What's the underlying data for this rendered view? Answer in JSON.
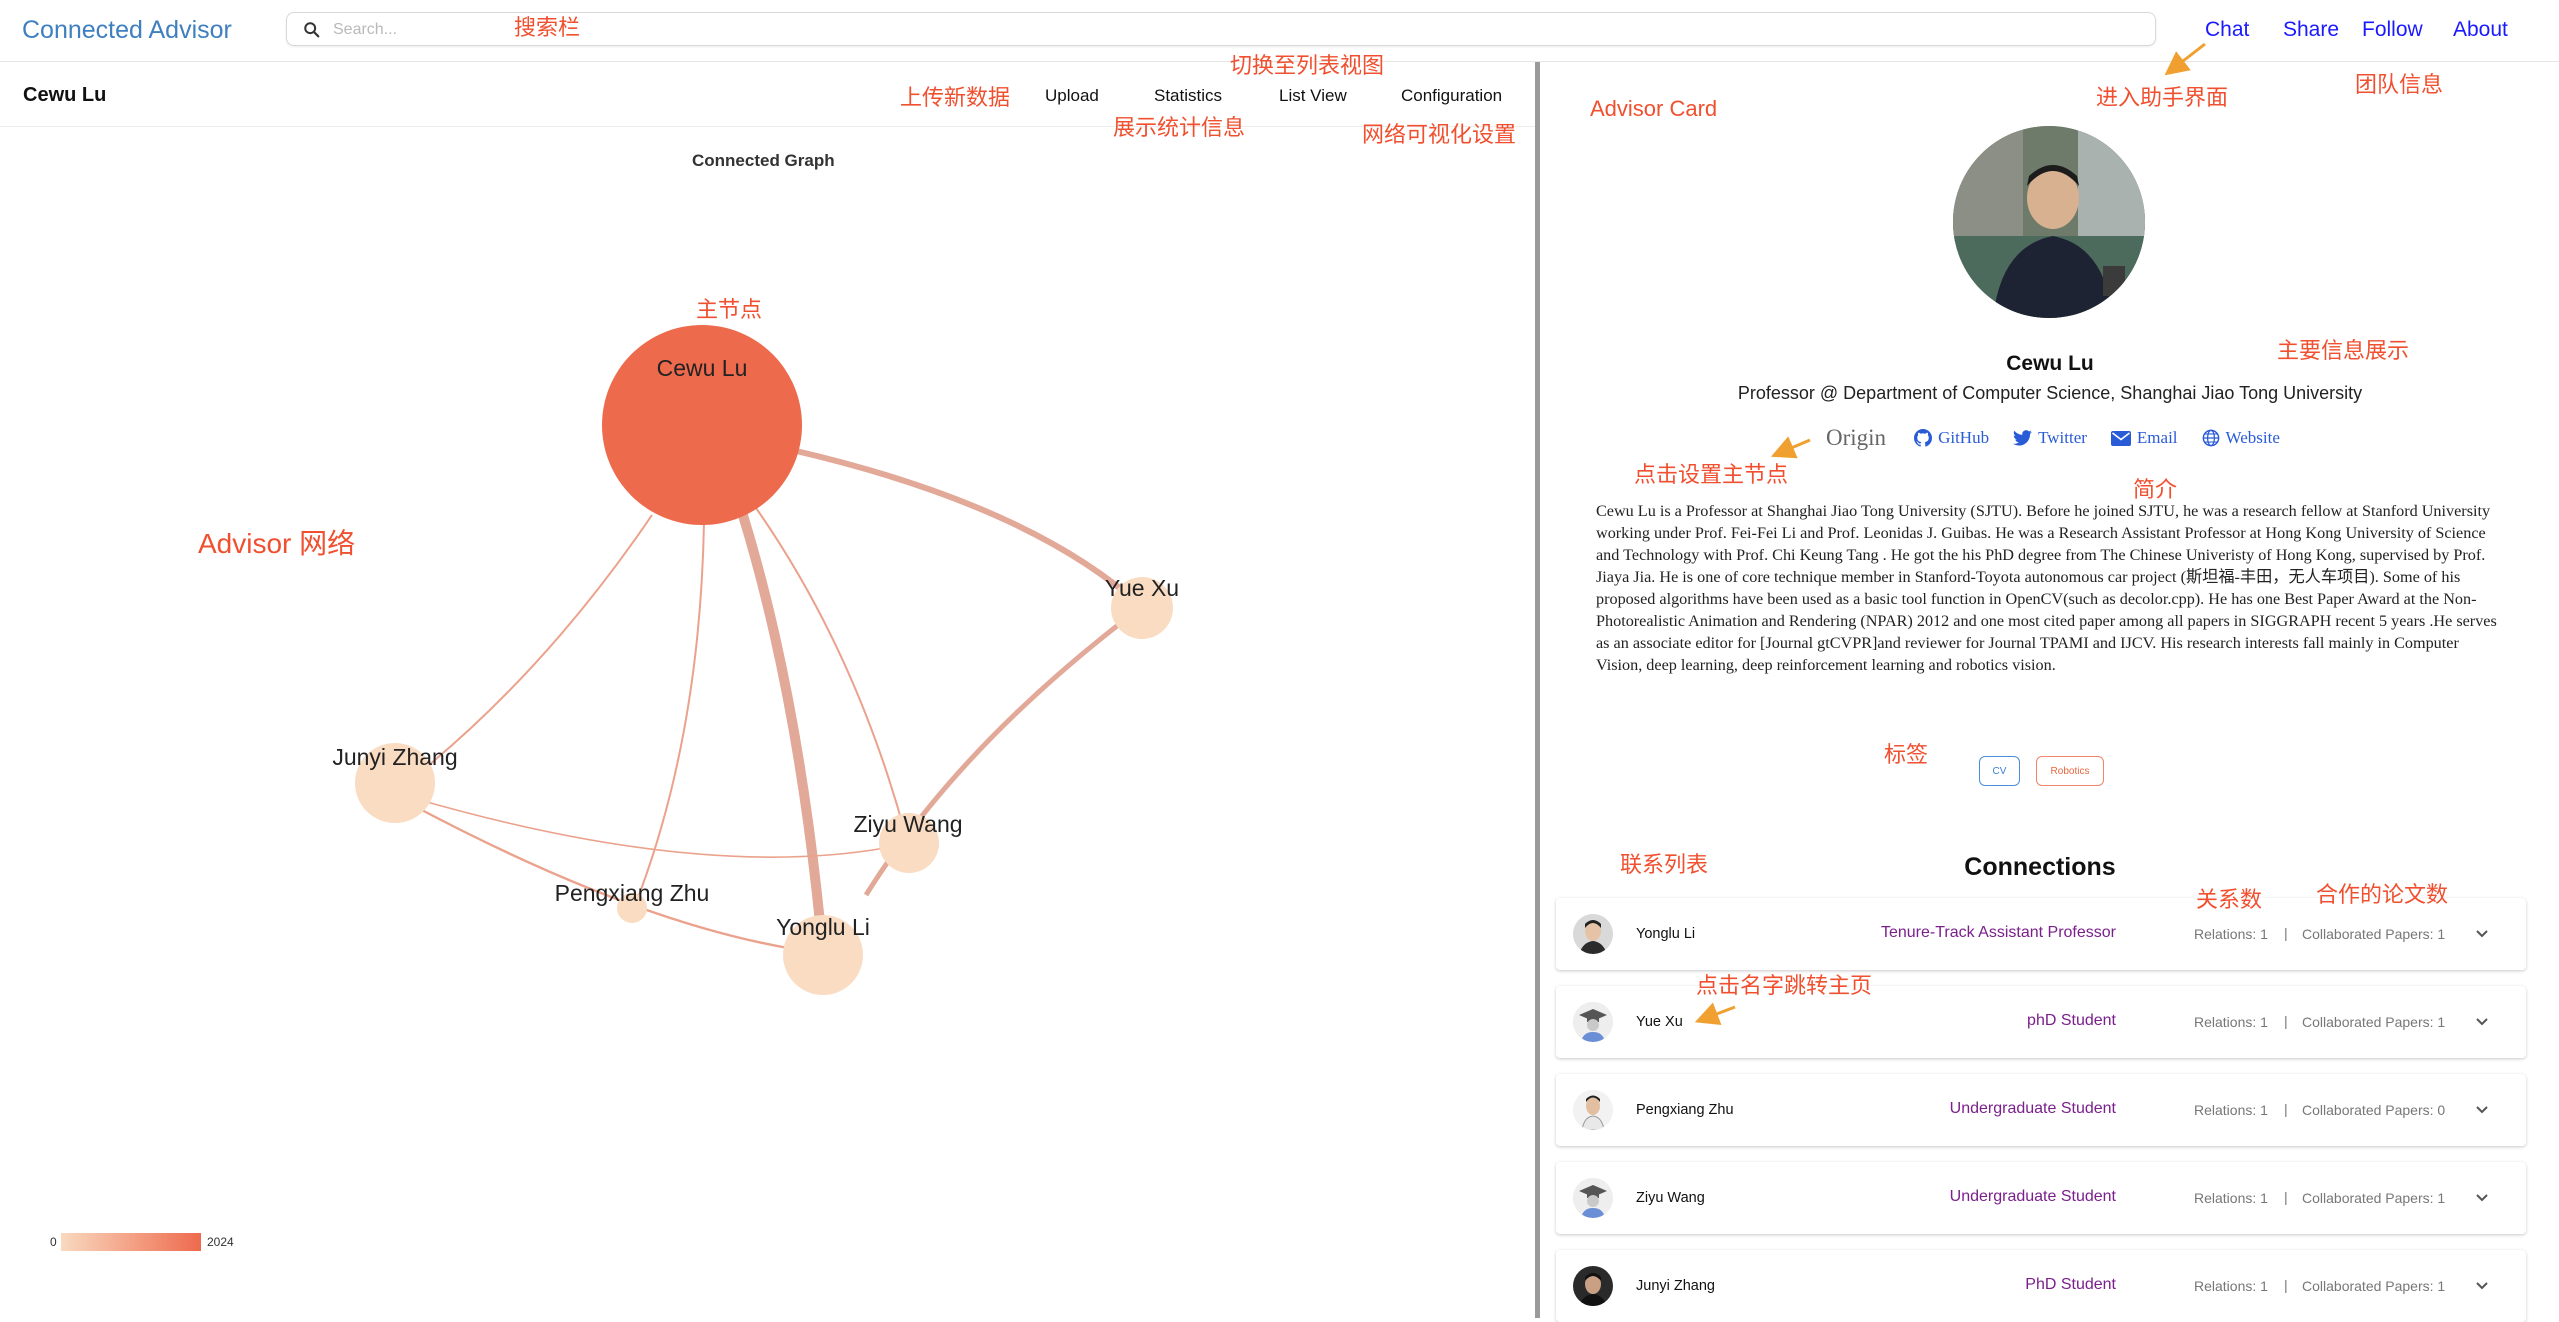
{
  "app": {
    "title": "Connected Advisor"
  },
  "search": {
    "placeholder": "Search..."
  },
  "nav": {
    "chat": "Chat",
    "share": "Share",
    "follow": "Follow",
    "about": "About"
  },
  "left": {
    "person": "Cewu Lu",
    "toolbar": {
      "upload": "Upload",
      "statistics": "Statistics",
      "list_view": "List View",
      "configuration": "Configuration"
    },
    "graph_title": "Connected Graph",
    "legend": {
      "min": "0",
      "max": "2024"
    }
  },
  "graph": {
    "nodes": [
      {
        "id": "cewu",
        "label": "Cewu Lu",
        "main": true
      },
      {
        "id": "yuexu",
        "label": "Yue Xu"
      },
      {
        "id": "junyi",
        "label": "Junyi Zhang"
      },
      {
        "id": "ziyu",
        "label": "Ziyu Wang"
      },
      {
        "id": "pengxiang",
        "label": "Pengxiang Zhu"
      },
      {
        "id": "yonglu",
        "label": "Yonglu Li"
      }
    ],
    "edges": [
      {
        "source": "cewu",
        "target": "yuexu",
        "weight": 4
      },
      {
        "source": "cewu",
        "target": "yonglu",
        "weight": 7
      },
      {
        "source": "cewu",
        "target": "junyi",
        "weight": 1.5
      },
      {
        "source": "cewu",
        "target": "pengxiang",
        "weight": 1.5
      },
      {
        "source": "cewu",
        "target": "ziyu",
        "weight": 1.5
      },
      {
        "source": "yuexu",
        "target": "yonglu",
        "weight": 4
      },
      {
        "source": "junyi",
        "target": "ziyu",
        "weight": 1.3
      },
      {
        "source": "junyi",
        "target": "yonglu",
        "weight": 1.8
      }
    ]
  },
  "annotations": {
    "search": "搜索栏",
    "list_view": "切换至列表视图",
    "upload": "上传新数据",
    "statistics": "展示统计信息",
    "config": "网络可视化设置",
    "main_node": "主节点",
    "network": "Advisor 网络",
    "advisor_card": "Advisor Card",
    "assistant": "进入助手界面",
    "team": "团队信息",
    "main_info": "主要信息展示",
    "set_main": "点击设置主节点",
    "intro": "简介",
    "tags": "标签",
    "connections_list": "联系列表",
    "relations": "关系数",
    "papers": "合作的论文数",
    "jump": "点击名字跳转主页"
  },
  "card": {
    "name": "Cewu Lu",
    "title": "Professor @ Department of Computer Science, Shanghai Jiao Tong University",
    "links": {
      "origin": "Origin",
      "github": "GitHub",
      "twitter": "Twitter",
      "email": "Email",
      "website": "Website"
    },
    "bio": "Cewu Lu is a Professor at Shanghai Jiao Tong University (SJTU). Before he joined SJTU, he was a research fellow at Stanford University working under Prof. Fei-Fei Li and Prof. Leonidas J. Guibas. He was a Research Assistant Professor at Hong Kong University of Science and Technology with Prof. Chi Keung Tang . He got the his PhD degree from The Chinese Univeristy of Hong Kong, supervised by Prof. Jiaya Jia. He is one of core technique member in Stanford-Toyota autonomous car project (斯坦福-丰田，无人车项目). Some of his proposed algorithms have been used as a basic tool function in OpenCV(such as decolor.cpp). He has one Best Paper Award at the Non-Photorealistic Animation and Rendering (NPAR) 2012 and one most cited paper among all papers in SIGGRAPH recent 5 years .He serves as an associate editor for [Journal gtCVPR]and reviewer for Journal TPAMI and IJCV. His research interests fall mainly in Computer Vision, deep learning, deep reinforcement learning and robotics vision.",
    "tags": [
      "CV",
      "Robotics"
    ]
  },
  "connections": {
    "title": "Connections",
    "items": [
      {
        "name": "Yonglu Li",
        "role": "Tenure-Track Assistant Professor",
        "relations": "Relations: 1",
        "sep": "|",
        "papers": "Collaborated Papers: 1",
        "avatar": "photo-avatar"
      },
      {
        "name": "Yue Xu",
        "role": "phD Student",
        "relations": "Relations: 1",
        "sep": "|",
        "papers": "Collaborated Papers: 1",
        "avatar": "graduate-cap-avatar"
      },
      {
        "name": "Pengxiang Zhu",
        "role": "Undergraduate Student",
        "relations": "Relations: 1",
        "sep": "|",
        "papers": "Collaborated Papers: 0",
        "avatar": "photo-avatar"
      },
      {
        "name": "Ziyu Wang",
        "role": "Undergraduate Student",
        "relations": "Relations: 1",
        "sep": "|",
        "papers": "Collaborated Papers: 1",
        "avatar": "graduate-cap-avatar"
      },
      {
        "name": "Junyi Zhang",
        "role": "PhD Student",
        "relations": "Relations: 1",
        "sep": "|",
        "papers": "Collaborated Papers: 1",
        "avatar": "photo-avatar"
      }
    ]
  },
  "colors": {
    "brand": "#3f7fbf",
    "nav": "#1a1aff",
    "annotation": "#f0502f",
    "arrow": "#f0a030",
    "main_node": "#ee6a4d",
    "node": "#f9dcc2",
    "edge": "#e2a898",
    "role": "#7a1f8c"
  }
}
